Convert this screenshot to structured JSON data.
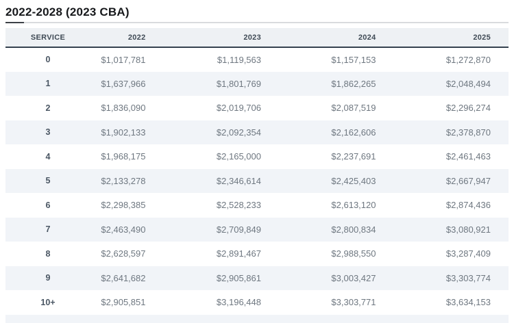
{
  "page": {
    "title": "2022-2028 (2023 CBA)"
  },
  "table": {
    "columns": [
      "SERVICE",
      "2022",
      "2023",
      "2024",
      "2025"
    ],
    "rows": [
      {
        "service": "0",
        "values": [
          "$1,017,781",
          "$1,119,563",
          "$1,157,153",
          "$1,272,870"
        ]
      },
      {
        "service": "1",
        "values": [
          "$1,637,966",
          "$1,801,769",
          "$1,862,265",
          "$2,048,494"
        ]
      },
      {
        "service": "2",
        "values": [
          "$1,836,090",
          "$2,019,706",
          "$2,087,519",
          "$2,296,274"
        ]
      },
      {
        "service": "3",
        "values": [
          "$1,902,133",
          "$2,092,354",
          "$2,162,606",
          "$2,378,870"
        ]
      },
      {
        "service": "4",
        "values": [
          "$1,968,175",
          "$2,165,000",
          "$2,237,691",
          "$2,461,463"
        ]
      },
      {
        "service": "5",
        "values": [
          "$2,133,278",
          "$2,346,614",
          "$2,425,403",
          "$2,667,947"
        ]
      },
      {
        "service": "6",
        "values": [
          "$2,298,385",
          "$2,528,233",
          "$2,613,120",
          "$2,874,436"
        ]
      },
      {
        "service": "7",
        "values": [
          "$2,463,490",
          "$2,709,849",
          "$2,800,834",
          "$3,080,921"
        ]
      },
      {
        "service": "8",
        "values": [
          "$2,628,597",
          "$2,891,467",
          "$2,988,550",
          "$3,287,409"
        ]
      },
      {
        "service": "9",
        "values": [
          "$2,641,682",
          "$2,905,861",
          "$3,003,427",
          "$3,303,774"
        ]
      },
      {
        "service": "10+",
        "values": [
          "$2,905,851",
          "$3,196,448",
          "$3,303,771",
          "$3,634,153"
        ]
      }
    ]
  },
  "colors": {
    "title_text": "#17191c",
    "title_rule_light": "#d9dbde",
    "title_rule_accent": "#3c4147",
    "header_background": "#eef1f4",
    "header_text": "#3f4a55",
    "header_border": "#34414e",
    "row_stripe": "#f1f4f8",
    "service_text": "#4a5663",
    "value_text": "#6e7780"
  }
}
